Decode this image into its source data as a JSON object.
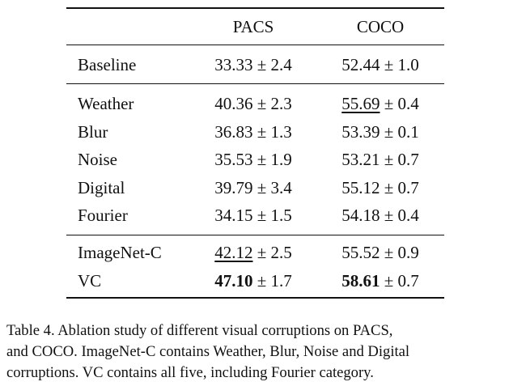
{
  "table": {
    "header": [
      "PACS",
      "COCO"
    ],
    "separator": "±",
    "groups": [
      [
        {
          "label": "Baseline",
          "cells": [
            {
              "mean": "33.33",
              "std": "2.4"
            },
            {
              "mean": "52.44",
              "std": "1.0"
            }
          ]
        }
      ],
      [
        {
          "label": "Weather",
          "cells": [
            {
              "mean": "40.36",
              "std": "2.3"
            },
            {
              "mean": "55.69",
              "std": "0.4",
              "style": "underline"
            }
          ]
        },
        {
          "label": "Blur",
          "cells": [
            {
              "mean": "36.83",
              "std": "1.3"
            },
            {
              "mean": "53.39",
              "std": "0.1"
            }
          ]
        },
        {
          "label": "Noise",
          "cells": [
            {
              "mean": "35.53",
              "std": "1.9"
            },
            {
              "mean": "53.21",
              "std": "0.7"
            }
          ]
        },
        {
          "label": "Digital",
          "cells": [
            {
              "mean": "39.79",
              "std": "3.4"
            },
            {
              "mean": "55.12",
              "std": "0.7"
            }
          ]
        },
        {
          "label": "Fourier",
          "cells": [
            {
              "mean": "34.15",
              "std": "1.5"
            },
            {
              "mean": "54.18",
              "std": "0.4"
            }
          ]
        }
      ],
      [
        {
          "label": "ImageNet-C",
          "cells": [
            {
              "mean": "42.12",
              "std": "2.5",
              "style": "underline"
            },
            {
              "mean": "55.52",
              "std": "0.9"
            }
          ]
        },
        {
          "label": "VC",
          "cells": [
            {
              "mean": "47.10",
              "std": "1.7",
              "style": "bold"
            },
            {
              "mean": "58.61",
              "std": "0.7",
              "style": "bold"
            }
          ]
        }
      ]
    ]
  },
  "caption": [
    "Table 4. Ablation study of different visual corruptions on PACS,",
    "and COCO. ImageNet-C contains Weather, Blur, Noise and Digital",
    "corruptions. VC contains all five, including Fourier category."
  ]
}
